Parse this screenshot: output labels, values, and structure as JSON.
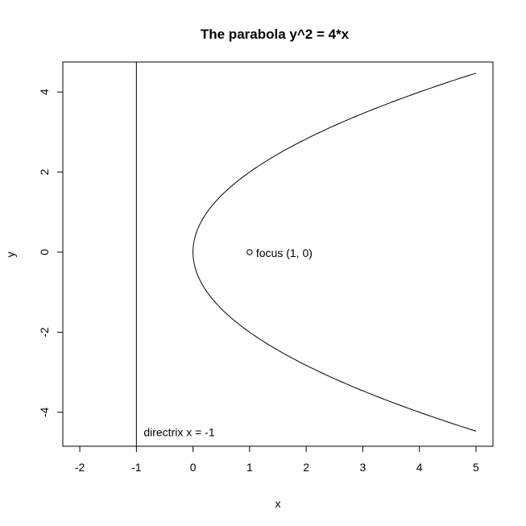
{
  "chart_data": {
    "type": "line",
    "title": "The parabola y^2 = 4*x",
    "xlabel": "x",
    "ylabel": "y",
    "xlim": [
      -2.3,
      5.3
    ],
    "ylim": [
      -4.85,
      4.75
    ],
    "x_ticks": [
      -2,
      -1,
      0,
      1,
      2,
      3,
      4,
      5
    ],
    "y_ticks": [
      -4,
      -2,
      0,
      2,
      4
    ],
    "x_tick_labels": [
      "-2",
      "-1",
      "0",
      "1",
      "2",
      "3",
      "4",
      "5"
    ],
    "y_tick_labels": [
      "-4",
      "-2",
      "0",
      "2",
      "4"
    ],
    "grid": false,
    "series": [
      {
        "equation": "y^2 = 4*x",
        "x_range": [
          0,
          5
        ],
        "color": "#000000"
      }
    ],
    "directrix": {
      "x": -1,
      "label": "directrix x = -1",
      "label_y": -4.5
    },
    "focus": {
      "x": 1,
      "y": 0,
      "label": "focus (1, 0)"
    }
  }
}
